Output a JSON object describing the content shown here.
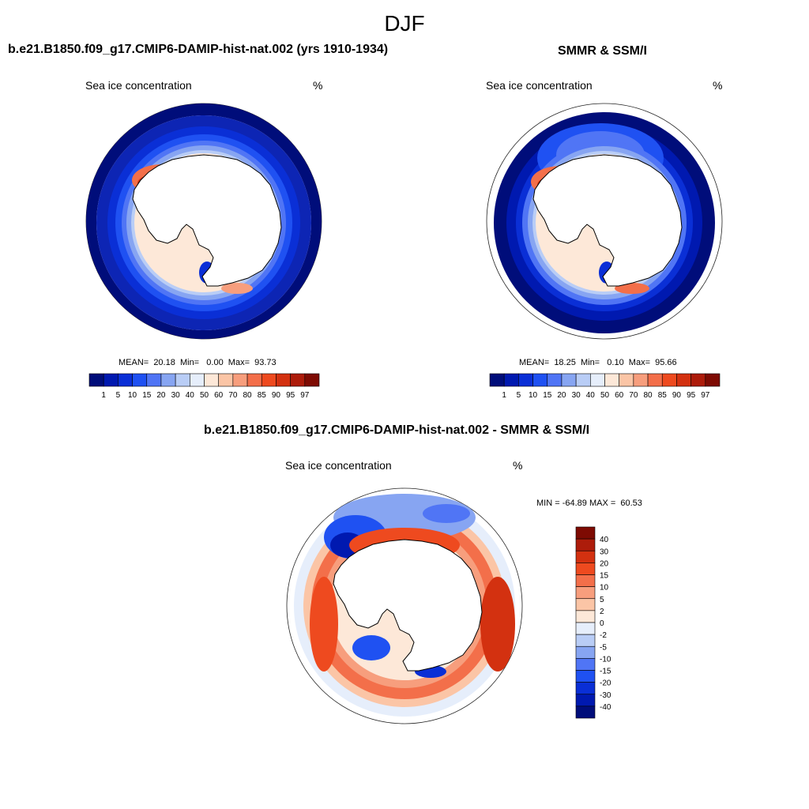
{
  "figure": {
    "title": "DJF"
  },
  "palettes": {
    "concentration": [
      "#000d7a",
      "#0019b0",
      "#0a2fd6",
      "#1f51f2",
      "#5075f5",
      "#87a5f2",
      "#b9cdf6",
      "#e6eefb",
      "#fde8d8",
      "#fbc5a6",
      "#f79e7d",
      "#f36f4a",
      "#ee4a1f",
      "#d33110",
      "#ad1c0b",
      "#7e0b03"
    ],
    "difference": [
      "#000d7a",
      "#0019b0",
      "#0a2fd6",
      "#1f51f2",
      "#5075f5",
      "#87a5f2",
      "#b9cdf6",
      "#e6eefb",
      "#fde8d8",
      "#fbc5a6",
      "#f79e7d",
      "#f36f4a",
      "#ee4a1f",
      "#d33110",
      "#ad1c0b",
      "#7e0b03"
    ]
  },
  "panels": [
    {
      "title": "b.e21.B1850.f09_g17.CMIP6-DAMIP-hist-nat.002 (yrs 1910-1934)",
      "variable": "Sea ice concentration",
      "units": "%",
      "stats_text": "MEAN=  20.18  Min=   0.00  Max=  93.73",
      "colorbar_labels": [
        "1",
        "5",
        "10",
        "15",
        "20",
        "30",
        "40",
        "50",
        "60",
        "70",
        "80",
        "85",
        "90",
        "95",
        "97"
      ]
    },
    {
      "title": "SMMR & SSM/I",
      "variable": "Sea ice concentration",
      "units": "%",
      "stats_text": "MEAN=  18.25  Min=   0.10  Max=  95.66",
      "colorbar_labels": [
        "1",
        "5",
        "10",
        "15",
        "20",
        "30",
        "40",
        "50",
        "60",
        "70",
        "80",
        "85",
        "90",
        "95",
        "97"
      ]
    },
    {
      "title": "b.e21.B1850.f09_g17.CMIP6-DAMIP-hist-nat.002 - SMMR & SSM/I",
      "variable": "Sea ice concentration",
      "units": "%",
      "stats_text": "MIN = -64.89 MAX =  60.53",
      "colorbar_labels": [
        "40",
        "30",
        "20",
        "15",
        "10",
        "5",
        "2",
        "0",
        "-2",
        "-5",
        "-10",
        "-15",
        "-20",
        "-30",
        "-40"
      ]
    }
  ]
}
